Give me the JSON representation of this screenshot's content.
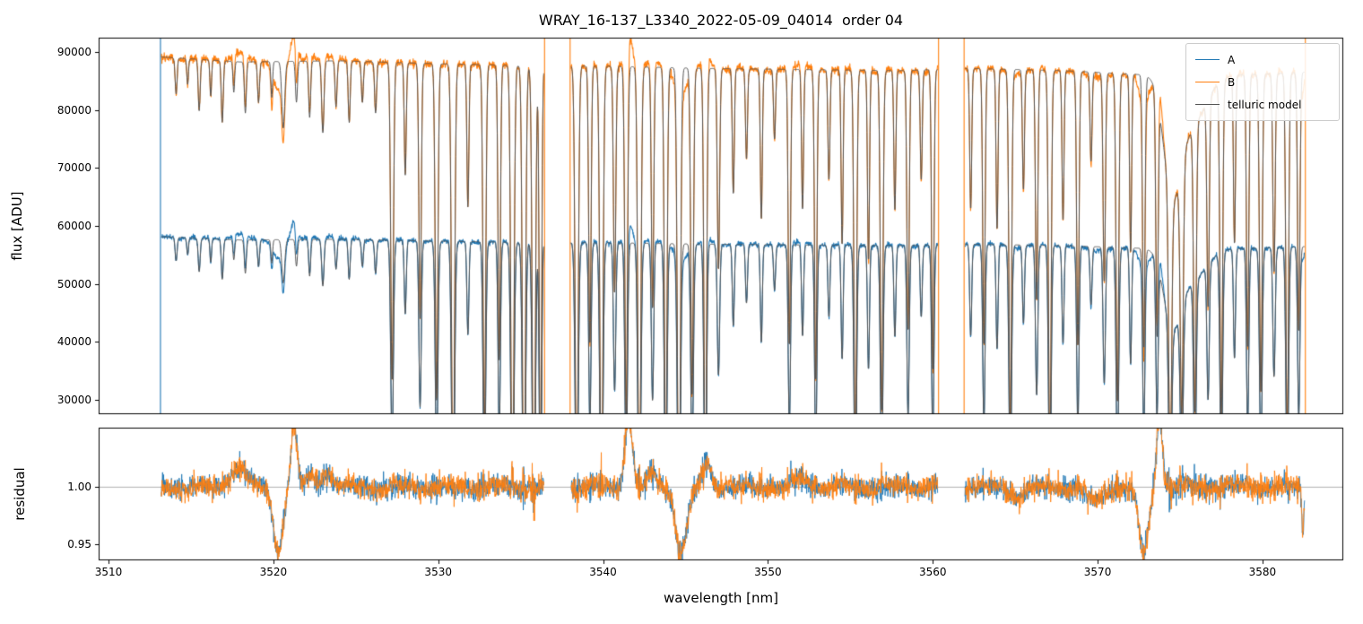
{
  "chart_data": {
    "type": "line",
    "title": "WRAY_16-137_L3340_2022-05-09_04014  order 04",
    "xlabel": "wavelength [nm]",
    "ylabel_top": "flux [ADU]",
    "ylabel_bottom": "residual",
    "x_range": [
      3509.4,
      3584.9
    ],
    "x_ticks": [
      3510,
      3520,
      3530,
      3540,
      3550,
      3560,
      3570,
      3580
    ],
    "top_panel": {
      "ylim": [
        27500,
        92500
      ],
      "yticks": [
        30000,
        40000,
        50000,
        60000,
        70000,
        80000,
        90000
      ]
    },
    "bottom_panel": {
      "ylim": [
        0.936,
        1.052
      ],
      "yticks": [
        {
          "v": 0.95,
          "label": "0.95"
        },
        {
          "v": 1.0,
          "label": "1.00"
        }
      ],
      "hline": 1.0
    },
    "series": [
      {
        "name": "A",
        "color": "#1f77b4"
      },
      {
        "name": "B",
        "color": "#ff7f0e"
      },
      {
        "name": "telluric model",
        "color": "#555555"
      }
    ],
    "segments": [
      [
        3513.2,
        3536.4
      ],
      [
        3538.05,
        3560.3
      ],
      [
        3561.95,
        3582.55
      ]
    ],
    "continuum_B": {
      "x": [
        3513,
        3518,
        3524,
        3530,
        3536,
        3540,
        3546,
        3552,
        3558,
        3562,
        3568,
        3572,
        3576,
        3580,
        3583
      ],
      "y": [
        89200,
        88300,
        88500,
        88000,
        87600,
        87600,
        87200,
        87000,
        86800,
        87200,
        86800,
        86200,
        85800,
        86200,
        86600
      ]
    },
    "continuum_A_scale": 0.652,
    "telluric_lines": [
      [
        3514.1,
        0.07,
        0.06
      ],
      [
        3514.8,
        0.05,
        0.05
      ],
      [
        3515.5,
        0.1,
        0.06
      ],
      [
        3516.2,
        0.07,
        0.05
      ],
      [
        3516.9,
        0.12,
        0.06
      ],
      [
        3517.6,
        0.06,
        0.05
      ],
      [
        3518.3,
        0.1,
        0.06
      ],
      [
        3519.1,
        0.08,
        0.06
      ],
      [
        3519.9,
        0.07,
        0.05
      ],
      [
        3520.6,
        0.13,
        0.09
      ],
      [
        3521.4,
        0.08,
        0.06
      ],
      [
        3522.2,
        0.11,
        0.06
      ],
      [
        3523.0,
        0.14,
        0.07
      ],
      [
        3523.8,
        0.09,
        0.06
      ],
      [
        3524.6,
        0.12,
        0.06
      ],
      [
        3525.4,
        0.08,
        0.06
      ],
      [
        3526.2,
        0.1,
        0.06
      ],
      [
        3527.2,
        0.62,
        0.08
      ],
      [
        3528.0,
        0.22,
        0.06
      ],
      [
        3528.9,
        0.5,
        0.07
      ],
      [
        3529.9,
        0.66,
        0.08
      ],
      [
        3530.9,
        0.88,
        0.09
      ],
      [
        3531.8,
        0.28,
        0.06
      ],
      [
        3532.8,
        0.74,
        0.08
      ],
      [
        3533.7,
        0.58,
        0.07
      ],
      [
        3534.5,
        0.92,
        0.09
      ],
      [
        3535.2,
        0.96,
        0.09
      ],
      [
        3535.8,
        0.97,
        0.09
      ],
      [
        3536.2,
        0.85,
        0.07
      ],
      [
        3538.4,
        0.88,
        0.09
      ],
      [
        3539.2,
        0.55,
        0.07
      ],
      [
        3539.9,
        0.93,
        0.09
      ],
      [
        3540.7,
        0.45,
        0.07
      ],
      [
        3541.4,
        0.7,
        0.08
      ],
      [
        3542.2,
        0.9,
        0.09
      ],
      [
        3543.0,
        0.48,
        0.07
      ],
      [
        3543.8,
        0.82,
        0.08
      ],
      [
        3544.6,
        0.94,
        0.09
      ],
      [
        3545.4,
        0.65,
        0.08
      ],
      [
        3546.2,
        0.86,
        0.08
      ],
      [
        3547.0,
        0.4,
        0.07
      ],
      [
        3547.9,
        0.25,
        0.06
      ],
      [
        3548.7,
        0.18,
        0.06
      ],
      [
        3549.6,
        0.3,
        0.06
      ],
      [
        3550.4,
        0.14,
        0.06
      ],
      [
        3551.3,
        0.55,
        0.07
      ],
      [
        3552.1,
        0.28,
        0.06
      ],
      [
        3552.9,
        0.62,
        0.07
      ],
      [
        3553.7,
        0.22,
        0.06
      ],
      [
        3554.5,
        0.35,
        0.06
      ],
      [
        3555.3,
        0.78,
        0.08
      ],
      [
        3556.1,
        0.38,
        0.06
      ],
      [
        3556.9,
        0.68,
        0.08
      ],
      [
        3557.7,
        0.28,
        0.06
      ],
      [
        3558.5,
        0.52,
        0.07
      ],
      [
        3559.3,
        0.22,
        0.06
      ],
      [
        3560.0,
        0.6,
        0.07
      ],
      [
        3562.3,
        0.28,
        0.06
      ],
      [
        3563.1,
        0.55,
        0.07
      ],
      [
        3563.9,
        0.32,
        0.06
      ],
      [
        3564.7,
        0.72,
        0.08
      ],
      [
        3565.5,
        0.24,
        0.06
      ],
      [
        3566.3,
        0.46,
        0.07
      ],
      [
        3567.1,
        0.78,
        0.08
      ],
      [
        3567.9,
        0.3,
        0.06
      ],
      [
        3568.8,
        0.55,
        0.07
      ],
      [
        3569.6,
        0.18,
        0.06
      ],
      [
        3570.4,
        0.42,
        0.07
      ],
      [
        3571.2,
        0.66,
        0.08
      ],
      [
        3572.0,
        0.36,
        0.06
      ],
      [
        3572.8,
        0.55,
        0.07
      ],
      [
        3573.6,
        0.48,
        0.07
      ],
      [
        3574.4,
        0.55,
        0.09
      ],
      [
        3575.1,
        0.5,
        0.09
      ],
      [
        3575.9,
        0.58,
        0.08
      ],
      [
        3576.7,
        0.42,
        0.07
      ],
      [
        3577.5,
        0.68,
        0.08
      ],
      [
        3578.3,
        0.34,
        0.06
      ],
      [
        3579.1,
        0.55,
        0.07
      ],
      [
        3579.9,
        0.64,
        0.08
      ],
      [
        3580.7,
        0.4,
        0.07
      ],
      [
        3581.5,
        0.74,
        0.08
      ],
      [
        3582.2,
        0.52,
        0.07
      ]
    ],
    "broad_features": [
      [
        3574.5,
        0.2,
        0.5
      ],
      [
        3575.6,
        0.1,
        0.9
      ]
    ],
    "residual_features": [
      [
        3517.9,
        0.018,
        0.45
      ],
      [
        3520.3,
        -0.054,
        0.3
      ],
      [
        3521.25,
        0.055,
        0.18
      ],
      [
        3522.3,
        0.01,
        0.25
      ],
      [
        3523.3,
        0.012,
        0.3
      ],
      [
        3541.55,
        0.065,
        0.22
      ],
      [
        3543.0,
        0.012,
        0.3
      ],
      [
        3544.75,
        -0.055,
        0.35
      ],
      [
        3546.3,
        0.022,
        0.25
      ],
      [
        3552.0,
        0.008,
        0.4
      ],
      [
        3565.0,
        -0.008,
        0.4
      ],
      [
        3569.8,
        -0.012,
        0.5
      ],
      [
        3572.8,
        -0.058,
        0.3
      ],
      [
        3573.75,
        0.06,
        0.18
      ],
      [
        3582.45,
        -0.04,
        0.07
      ]
    ],
    "edge_spikes": [
      {
        "x": 3513.15,
        "series": "A"
      },
      {
        "x": 3536.45,
        "series": "B"
      },
      {
        "x": 3538.0,
        "series": "B"
      },
      {
        "x": 3560.35,
        "series": "B"
      },
      {
        "x": 3561.9,
        "series": "B"
      },
      {
        "x": 3582.6,
        "series": "B"
      }
    ],
    "noise": {
      "flux_base": 0.004,
      "flux_line": 0.012,
      "residual_base": 0.005,
      "residual_line": 0.008
    },
    "seed": 42
  }
}
